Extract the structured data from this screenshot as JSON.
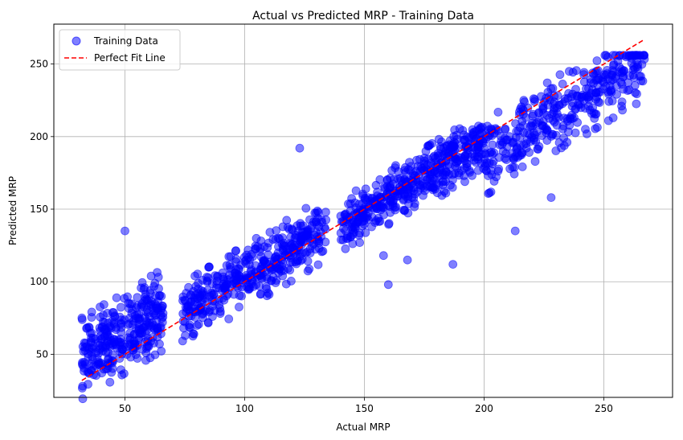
{
  "chart_data": {
    "type": "scatter",
    "title": "Actual vs Predicted MRP - Training Data",
    "xlabel": "Actual MRP",
    "ylabel": "Predicted MRP",
    "xlim": [
      20.3,
      278.7
    ],
    "ylim": [
      20.3,
      277.5
    ],
    "xticks": [
      50,
      100,
      150,
      200,
      250
    ],
    "yticks": [
      50,
      100,
      150,
      200,
      250
    ],
    "grid": true,
    "legend_position": "top-left",
    "colors": {
      "scatter": "#0000ff",
      "line": "#ff0000",
      "grid": "#b0b0b0"
    },
    "series": [
      {
        "name": "Training Data",
        "kind": "scatter",
        "clusters": [
          {
            "x_range": [
              32,
              66
            ],
            "y_center_offset": 15,
            "y_spread": 28,
            "count": 320
          },
          {
            "x_range": [
              74,
              134
            ],
            "y_center_offset": 3,
            "y_spread": 22,
            "count": 420
          },
          {
            "x_range": [
              140,
              200
            ],
            "y_center_offset": -3,
            "y_spread": 20,
            "count": 460
          },
          {
            "x_range": [
              200,
              267
            ],
            "y_center_offset": -15,
            "y_spread": 26,
            "count": 380
          }
        ],
        "outliers": [
          {
            "x": 123,
            "y": 192
          },
          {
            "x": 50,
            "y": 135
          },
          {
            "x": 160,
            "y": 98
          },
          {
            "x": 187,
            "y": 112
          },
          {
            "x": 213,
            "y": 135
          },
          {
            "x": 228,
            "y": 158
          },
          {
            "x": 168,
            "y": 115
          },
          {
            "x": 158,
            "y": 118
          }
        ]
      },
      {
        "name": "Perfect Fit Line",
        "kind": "line",
        "style": "dashed",
        "x": [
          32,
          267
        ],
        "y": [
          32,
          267
        ]
      }
    ]
  }
}
